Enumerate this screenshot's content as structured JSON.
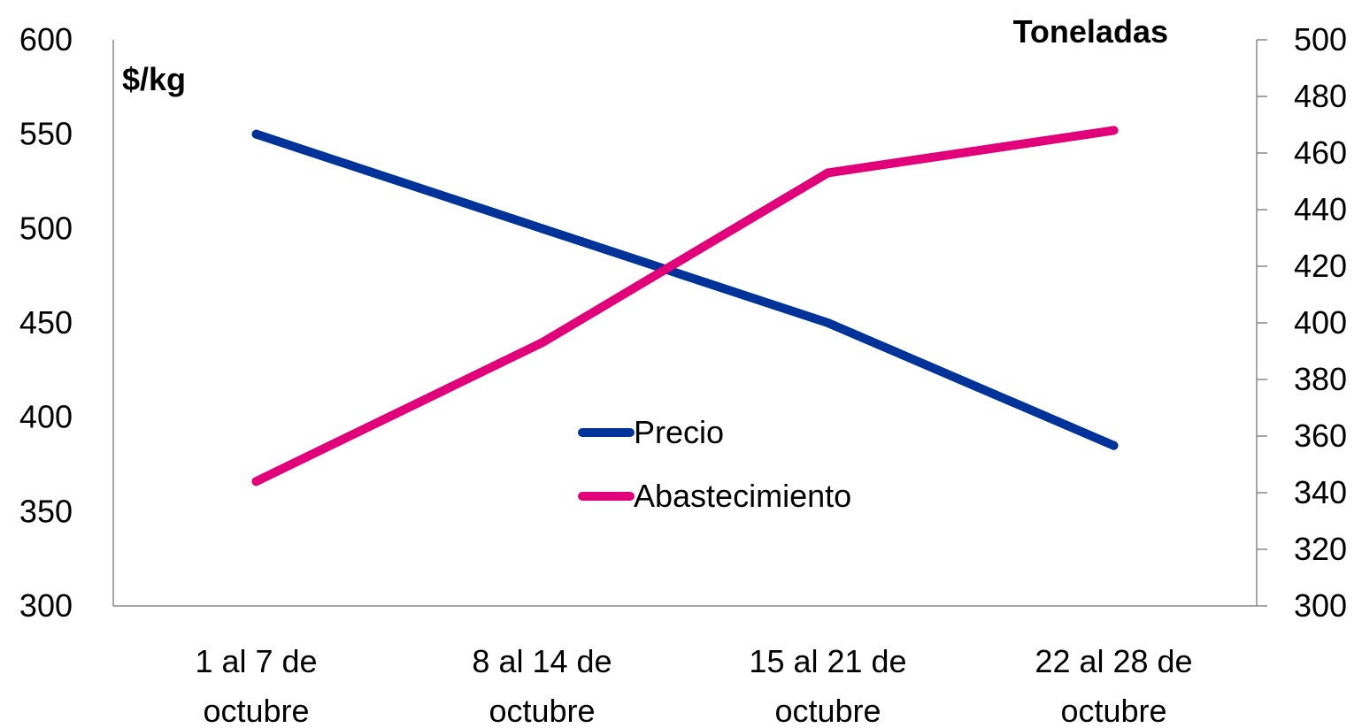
{
  "chart_data": {
    "type": "line",
    "categories": [
      [
        "1 al 7 de",
        "octubre"
      ],
      [
        "8 al 14 de",
        "octubre"
      ],
      [
        "15 al 21 de",
        "octubre"
      ],
      [
        "22 al 28 de",
        "octubre"
      ]
    ],
    "left_axis": {
      "label": "$/kg",
      "ylim": [
        300,
        600
      ],
      "ticks": [
        "300",
        "350",
        "400",
        "450",
        "500",
        "550",
        "600"
      ]
    },
    "right_axis": {
      "label": "Toneladas",
      "ylim": [
        300,
        500
      ],
      "ticks": [
        "300",
        "320",
        "340",
        "360",
        "380",
        "400",
        "420",
        "440",
        "460",
        "480",
        "500"
      ]
    },
    "series": [
      {
        "name": "Precio",
        "axis": "left",
        "color": "#003399",
        "values": [
          550,
          500,
          450,
          385
        ]
      },
      {
        "name": "Abastecimiento",
        "axis": "right",
        "color": "#E2007A",
        "values": [
          344,
          393,
          453,
          468
        ]
      }
    ],
    "legend_position": "center",
    "grid": false
  }
}
